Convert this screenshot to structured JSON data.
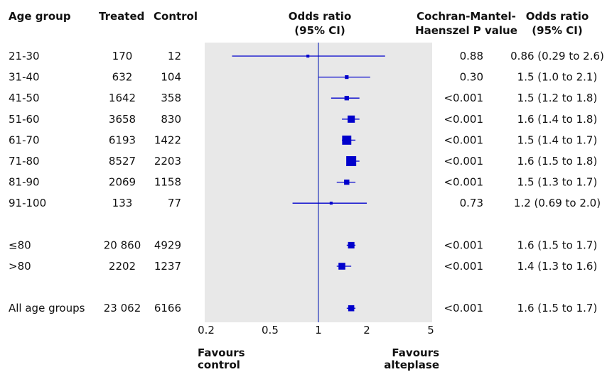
{
  "headers": {
    "age_group": "Age group",
    "treated": "Treated",
    "control": "Control",
    "odds_ratio": [
      "Odds ratio",
      "(95% CI)"
    ],
    "p_value": [
      "Cochran-Mantel-",
      "Haenszel P value"
    ],
    "or_ci": [
      "Odds ratio",
      "(95% CI)"
    ]
  },
  "footer": {
    "favours_control": [
      "Favours",
      "control"
    ],
    "favours_alteplase": [
      "Favours",
      "alteplase"
    ]
  },
  "colors": {
    "marker": "#0000cc",
    "panel": "#e8e8e8",
    "reference_line": "#2233bb"
  },
  "chart_data": {
    "type": "forest",
    "scale": "log",
    "reference_value": 1,
    "xlim": [
      0.2,
      5
    ],
    "xticks": [
      0.2,
      0.5,
      1,
      2,
      5
    ],
    "xtick_labels": [
      "0.2",
      "0.5",
      "1",
      "2",
      "5"
    ],
    "rows": [
      {
        "group": "21-30",
        "treated": "170",
        "control": "12",
        "p": "0.88",
        "or": 0.86,
        "lo": 0.29,
        "hi": 2.6,
        "or_text": "0.86 (0.29 to 2.6)",
        "weight": 0.1
      },
      {
        "group": "31-40",
        "treated": "632",
        "control": "104",
        "p": "0.30",
        "or": 1.5,
        "lo": 1.0,
        "hi": 2.1,
        "or_text": "1.5 (1.0 to 2.1)",
        "weight": 0.2
      },
      {
        "group": "41-50",
        "treated": "1642",
        "control": "358",
        "p": "<0.001",
        "or": 1.5,
        "lo": 1.2,
        "hi": 1.8,
        "or_text": "1.5 (1.2 to 1.8)",
        "weight": 0.3
      },
      {
        "group": "51-60",
        "treated": "3658",
        "control": "830",
        "p": "<0.001",
        "or": 1.6,
        "lo": 1.4,
        "hi": 1.8,
        "or_text": "1.6 (1.4 to 1.8)",
        "weight": 0.65
      },
      {
        "group": "61-70",
        "treated": "6193",
        "control": "1422",
        "p": "<0.001",
        "or": 1.5,
        "lo": 1.4,
        "hi": 1.7,
        "or_text": "1.5 (1.4 to 1.7)",
        "weight": 0.9
      },
      {
        "group": "71-80",
        "treated": "8527",
        "control": "2203",
        "p": "<0.001",
        "or": 1.6,
        "lo": 1.5,
        "hi": 1.8,
        "or_text": "1.6 (1.5 to 1.8)",
        "weight": 1.0
      },
      {
        "group": "81-90",
        "treated": "2069",
        "control": "1158",
        "p": "<0.001",
        "or": 1.5,
        "lo": 1.3,
        "hi": 1.7,
        "or_text": "1.5 (1.3 to 1.7)",
        "weight": 0.4
      },
      {
        "group": "91-100",
        "treated": "133",
        "control": "77",
        "p": "0.73",
        "or": 1.2,
        "lo": 0.69,
        "hi": 2.0,
        "or_text": "1.2 (0.69 to 2.0)",
        "weight": 0.1
      },
      {
        "spacer": true
      },
      {
        "group": "≤80",
        "treated": "20 860",
        "control": "4929",
        "p": "<0.001",
        "or": 1.6,
        "lo": 1.5,
        "hi": 1.7,
        "or_text": "1.6 (1.5 to 1.7)",
        "weight": 0.55
      },
      {
        "group": ">80",
        "treated": "2202",
        "control": "1237",
        "p": "<0.001",
        "or": 1.4,
        "lo": 1.3,
        "hi": 1.6,
        "or_text": "1.4 (1.3 to 1.6)",
        "weight": 0.6
      },
      {
        "spacer": true
      },
      {
        "group": "All age groups",
        "treated": "23 062",
        "control": "6166",
        "p": "<0.001",
        "or": 1.6,
        "lo": 1.5,
        "hi": 1.7,
        "or_text": "1.6 (1.5 to 1.7)",
        "weight": 0.5
      }
    ]
  }
}
